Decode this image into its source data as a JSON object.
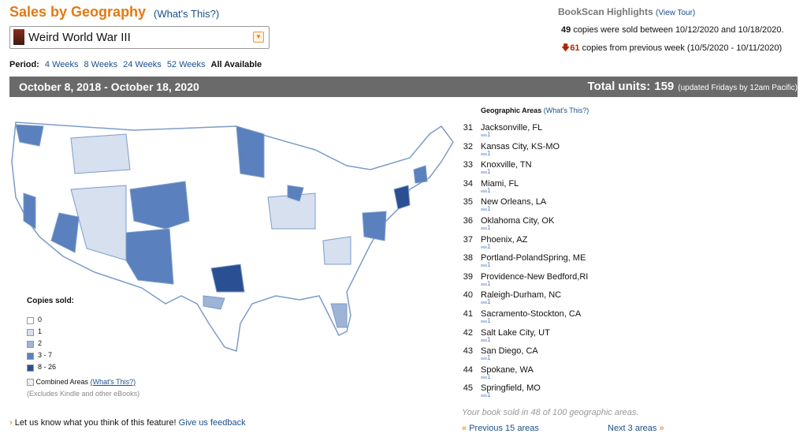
{
  "header": {
    "title": "Sales by Geography",
    "help_link": "(What's This?)",
    "book_title": "Weird World War III"
  },
  "period": {
    "label": "Period:",
    "options": [
      "4 Weeks",
      "8 Weeks",
      "24 Weeks",
      "52 Weeks",
      "All Available"
    ]
  },
  "highlights": {
    "title": "BookScan Highlights",
    "tour_link": "(View Tour)",
    "copies": 49,
    "copies_text": "copies were sold between 10/12/2020 and 10/18/2020.",
    "previous": 61,
    "previous_text": "copies from previous week (10/5/2020 - 10/11/2020)"
  },
  "banner": {
    "date_range": "October 8, 2018 - October 18, 2020",
    "total_label": "Total units:",
    "total": 159,
    "note": "(updated Fridays by 12am Pacific)"
  },
  "legend": {
    "title": "Copies sold:",
    "items": [
      {
        "label": "0",
        "color": "#ffffff"
      },
      {
        "label": "1",
        "color": "#d6e0ee"
      },
      {
        "label": "2",
        "color": "#9db4d6"
      },
      {
        "label": "3 - 7",
        "color": "#5a80bd"
      },
      {
        "label": "8 - 26",
        "color": "#2a4f93"
      }
    ],
    "combined": "Combined Areas",
    "combined_link": "(What's This?)",
    "note": "(Excludes Kindle and other eBooks)"
  },
  "areas": {
    "title": "Geographic Areas",
    "help_link": "(What's This?)",
    "rows": [
      {
        "rank": 31,
        "name": "Jacksonville, FL",
        "copies": 1
      },
      {
        "rank": 32,
        "name": "Kansas City, KS-MO",
        "copies": 1
      },
      {
        "rank": 33,
        "name": "Knoxville, TN",
        "copies": 1
      },
      {
        "rank": 34,
        "name": "Miami, FL",
        "copies": 1
      },
      {
        "rank": 35,
        "name": "New Orleans, LA",
        "copies": 1
      },
      {
        "rank": 36,
        "name": "Oklahoma City, OK",
        "copies": 1
      },
      {
        "rank": 37,
        "name": "Phoenix, AZ",
        "copies": 1
      },
      {
        "rank": 38,
        "name": "Portland-PolandSpring, ME",
        "copies": 1
      },
      {
        "rank": 39,
        "name": "Providence-New Bedford,RI",
        "copies": 1
      },
      {
        "rank": 40,
        "name": "Raleigh-Durham, NC",
        "copies": 1
      },
      {
        "rank": 41,
        "name": "Sacramento-Stockton, CA",
        "copies": 1
      },
      {
        "rank": 42,
        "name": "Salt Lake City, UT",
        "copies": 1
      },
      {
        "rank": 43,
        "name": "San Diego, CA",
        "copies": 1
      },
      {
        "rank": 44,
        "name": "Spokane, WA",
        "copies": 1
      },
      {
        "rank": 45,
        "name": "Springfield, MO",
        "copies": 1
      }
    ],
    "summary": "Your book sold in 48 of 100 geographic areas.",
    "prev_link": "Previous 15 areas",
    "next_link": "Next 3 areas"
  },
  "feedback": {
    "text": "Let us know what you think of this feature!",
    "link": "Give us feedback"
  }
}
